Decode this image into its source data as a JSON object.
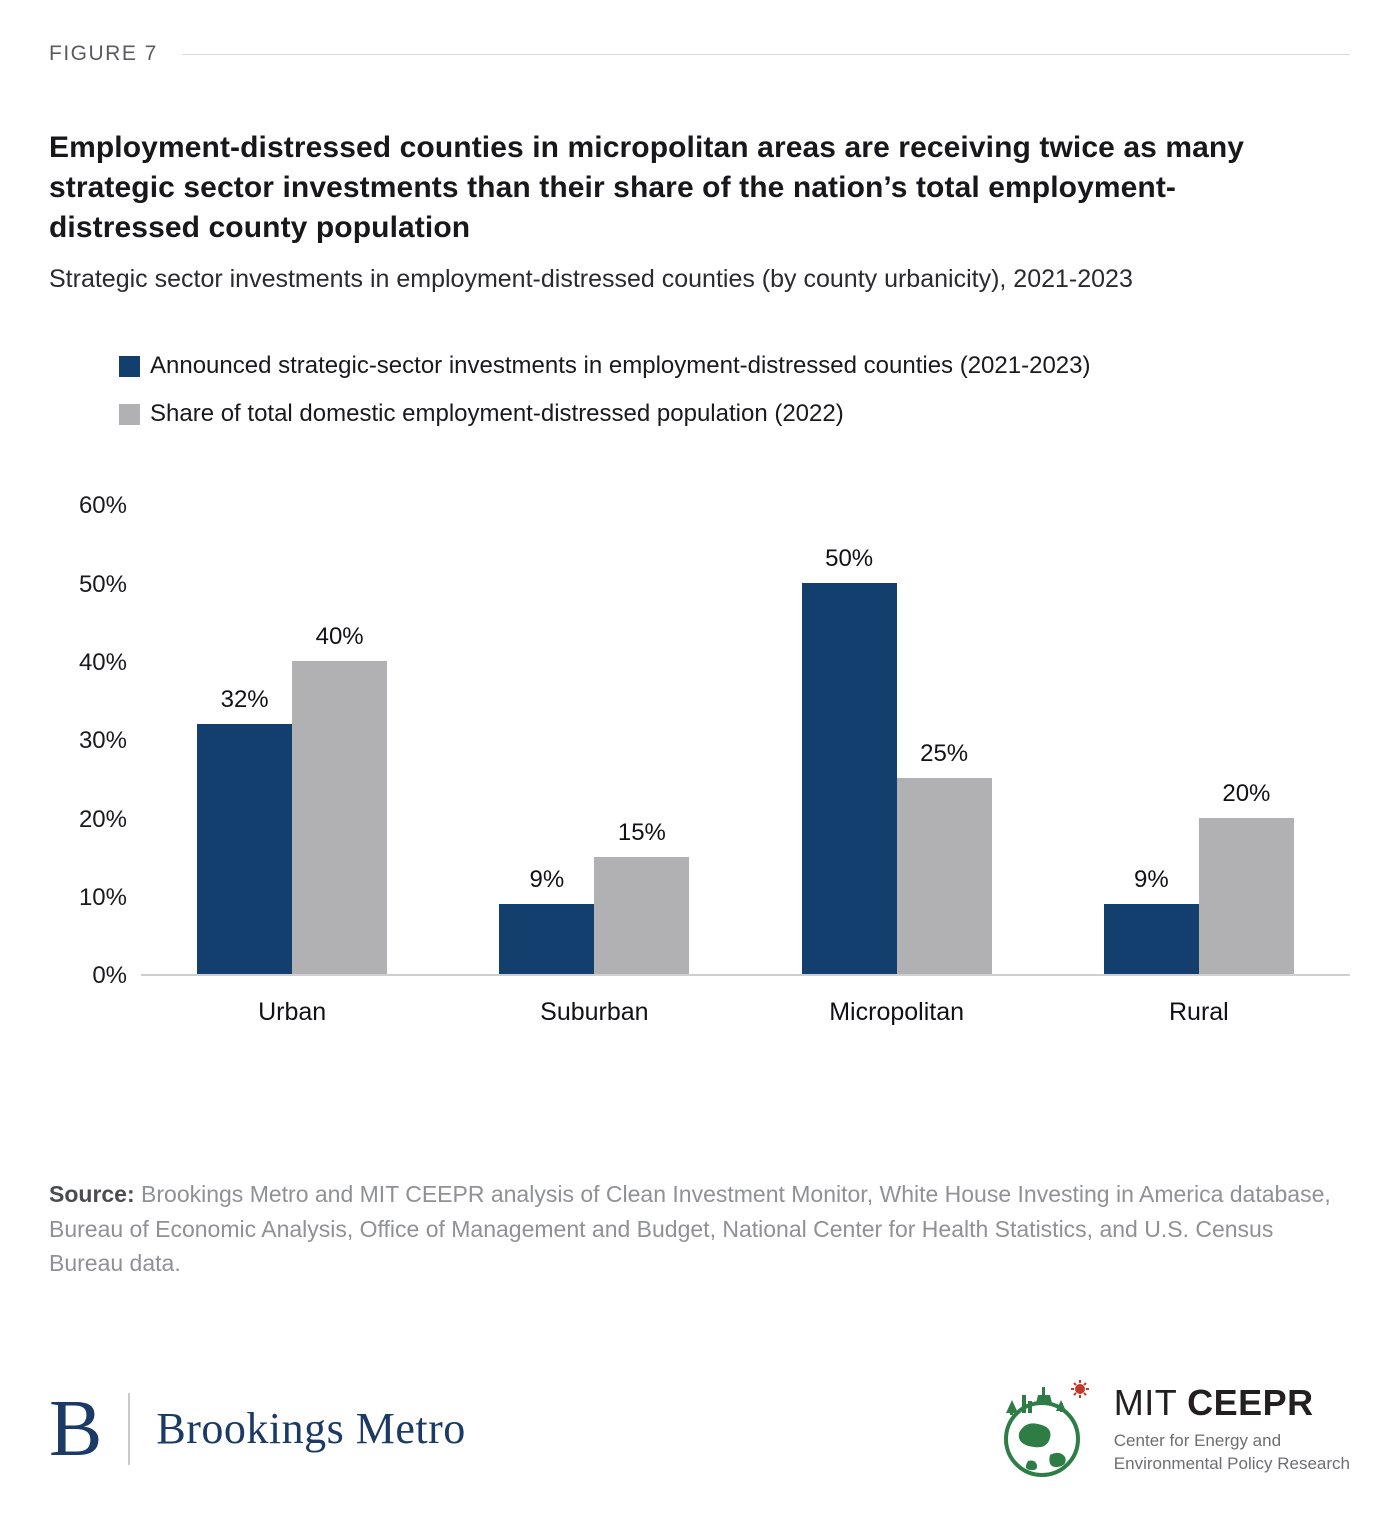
{
  "figure_label": "FIGURE 7",
  "title": "Employment-distressed counties in micropolitan areas are receiving twice as many strategic sector investments than their share of the nation’s total employment-distressed county population",
  "subtitle": "Strategic sector investments in employment-distressed counties (by county urbanicity), 2021-2023",
  "legend": [
    {
      "label": "Announced strategic-sector investments in employment-distressed counties (2021-2023)",
      "color": "#123F6D"
    },
    {
      "label": "Share of total domestic employment-distressed population (2022)",
      "color": "#B1B1B3"
    }
  ],
  "chart_data": {
    "type": "bar",
    "categories": [
      "Urban",
      "Suburban",
      "Micropolitan",
      "Rural"
    ],
    "series": [
      {
        "name": "Announced strategic-sector investments in employment-distressed counties (2021-2023)",
        "color": "#123F6D",
        "values": [
          32,
          9,
          50,
          9
        ]
      },
      {
        "name": "Share of total domestic employment-distressed population (2022)",
        "color": "#B1B1B3",
        "values": [
          40,
          15,
          25,
          20
        ]
      }
    ],
    "value_suffix": "%",
    "ylim": [
      0,
      60
    ],
    "ytick_step": 10,
    "yticks": [
      "60%",
      "50%",
      "40%",
      "30%",
      "20%",
      "10%",
      "0%"
    ],
    "grid": false,
    "legend_position": "top-left"
  },
  "source": {
    "label": "Source:",
    "text": " Brookings Metro and MIT CEEPR analysis of Clean Investment Monitor, White House Investing in America database, Bureau of Economic Analysis, Office of Management and Budget, National Center for Health Statistics, and U.S. Census Bureau data."
  },
  "footer": {
    "brookings": {
      "initial": "B",
      "name": "Brookings Metro"
    },
    "ceepr": {
      "org": "MIT ",
      "org_bold": "CEEPR",
      "tagline_line1": "Center for Energy and",
      "tagline_line2": "Environmental Policy Research"
    }
  }
}
